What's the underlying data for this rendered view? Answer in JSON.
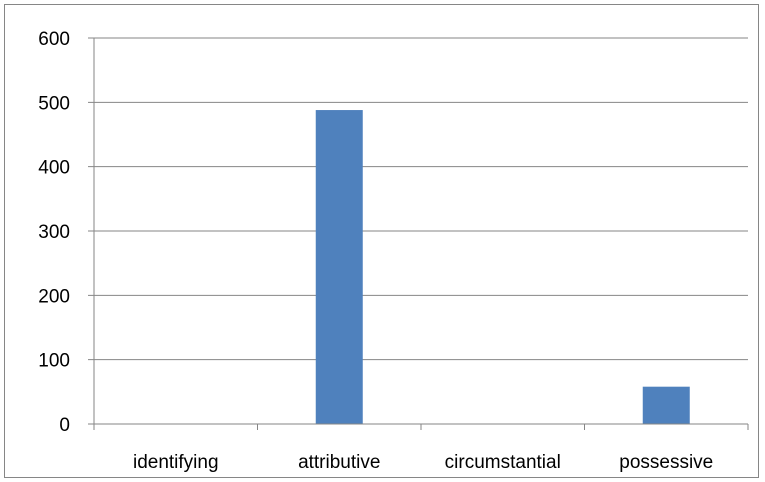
{
  "chart_data": {
    "type": "bar",
    "categories": [
      "identifying",
      "attributive",
      "circumstantial",
      "possessive"
    ],
    "values": [
      0,
      488,
      0,
      58
    ],
    "yticks": [
      "0",
      "100",
      "200",
      "300",
      "400",
      "500",
      "600"
    ],
    "ylim": [
      0,
      600
    ],
    "grid": true,
    "legend": "none",
    "colors": {
      "bar": "#4f81bd",
      "grid": "#868686",
      "axis": "#868686",
      "text": "#000000"
    }
  }
}
